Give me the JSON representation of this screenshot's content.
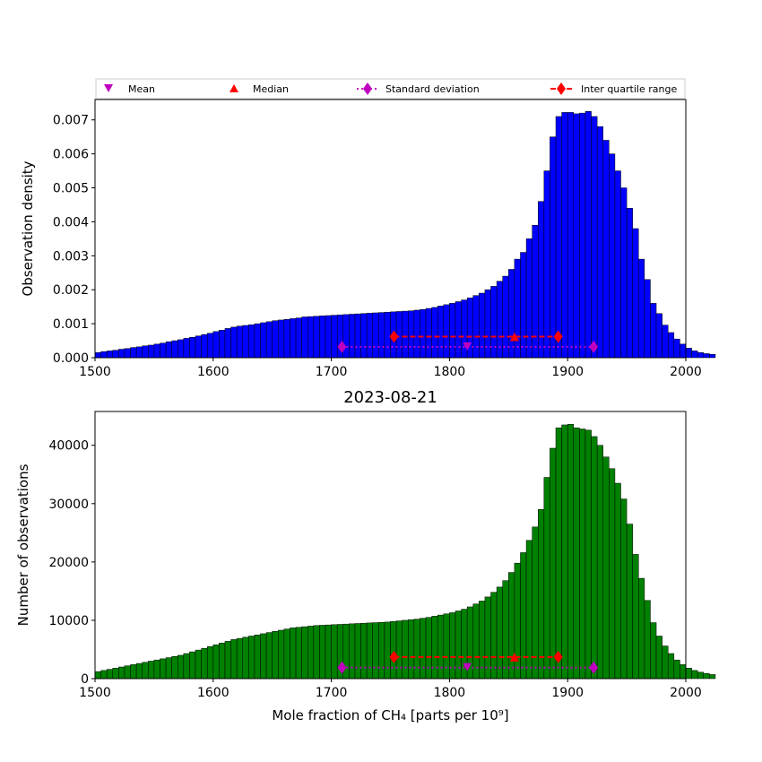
{
  "legend": {
    "placement": "top, spanning width",
    "entries": [
      {
        "label": "Mean",
        "marker": "triangle-down",
        "color": "#bf00bf",
        "line": "none"
      },
      {
        "label": "Median",
        "marker": "triangle-up",
        "color": "#ff0000",
        "line": "none"
      },
      {
        "label": "Standard deviation",
        "marker": "diamond",
        "color": "#bf00bf",
        "line": "dotted"
      },
      {
        "label": "Inter quartile range",
        "marker": "diamond",
        "color": "#ff0000",
        "line": "dashed"
      }
    ]
  },
  "chart_data": [
    {
      "type": "bar",
      "bar_color": "#0000ff",
      "title": "",
      "xlabel": "",
      "ylabel": "Observation density",
      "xlim": [
        1500,
        2000
      ],
      "ylim": [
        0,
        0.0076
      ],
      "xticks": [
        "1500",
        "1600",
        "1700",
        "1800",
        "1900",
        "2000"
      ],
      "yticks": [
        "0.000",
        "0.001",
        "0.002",
        "0.003",
        "0.004",
        "0.005",
        "0.006",
        "0.007"
      ],
      "bin_start": 1500,
      "bin_width": 5,
      "values": [
        0.00015,
        0.00018,
        0.0002,
        0.00022,
        0.00025,
        0.00027,
        0.0003,
        0.00032,
        0.00035,
        0.00037,
        0.0004,
        0.00043,
        0.00047,
        0.0005,
        0.00053,
        0.00057,
        0.0006,
        0.00064,
        0.00068,
        0.00072,
        0.00077,
        0.00081,
        0.00086,
        0.0009,
        0.00093,
        0.00095,
        0.00097,
        0.001,
        0.00103,
        0.00106,
        0.00109,
        0.00111,
        0.00113,
        0.00115,
        0.00117,
        0.0012,
        0.00121,
        0.00122,
        0.00123,
        0.00124,
        0.00125,
        0.00126,
        0.00127,
        0.00128,
        0.00129,
        0.0013,
        0.00131,
        0.00132,
        0.00133,
        0.00134,
        0.00135,
        0.00136,
        0.00137,
        0.00138,
        0.0014,
        0.00142,
        0.00145,
        0.00148,
        0.00152,
        0.00156,
        0.0016,
        0.00165,
        0.0017,
        0.00176,
        0.00183,
        0.0019,
        0.002,
        0.0021,
        0.00225,
        0.0024,
        0.0026,
        0.0029,
        0.0031,
        0.0035,
        0.0039,
        0.0046,
        0.0055,
        0.0065,
        0.0071,
        0.00722,
        0.00722,
        0.00718,
        0.0072,
        0.00725,
        0.0071,
        0.0068,
        0.0064,
        0.006,
        0.0055,
        0.005,
        0.0044,
        0.0038,
        0.0029,
        0.0023,
        0.0016,
        0.0013,
        0.00096,
        0.00074,
        0.00055,
        0.0004,
        0.00028,
        0.0002,
        0.00015,
        0.00012,
        0.0001
      ],
      "statistics": {
        "mean": 1815,
        "median": 1855,
        "standard_deviation_range": [
          1709,
          1922
        ],
        "inter_quartile_range": [
          1753,
          1892
        ],
        "mean_y": 0.00032,
        "median_y": 0.00062,
        "standard_deviation_y": 0.00032,
        "inter_quartile_range_y": 0.00062
      }
    },
    {
      "type": "bar",
      "bar_color": "#008000",
      "title": "2023-08-21",
      "xlabel": "Mole fraction of CH₄ [parts per 10⁹]",
      "ylabel": "Number of observations",
      "xlim": [
        1500,
        2000
      ],
      "ylim": [
        0,
        45800
      ],
      "xticks": [
        "1500",
        "1600",
        "1700",
        "1800",
        "1900",
        "2000"
      ],
      "yticks": [
        "0",
        "10000",
        "20000",
        "30000",
        "40000"
      ],
      "bin_start": 1500,
      "bin_width": 5,
      "values": [
        1200,
        1400,
        1600,
        1800,
        2000,
        2200,
        2400,
        2600,
        2800,
        3000,
        3200,
        3400,
        3600,
        3800,
        4000,
        4300,
        4600,
        4900,
        5200,
        5500,
        5800,
        6100,
        6400,
        6700,
        6900,
        7100,
        7300,
        7500,
        7700,
        7900,
        8100,
        8300,
        8500,
        8700,
        8800,
        8900,
        9000,
        9100,
        9150,
        9200,
        9250,
        9300,
        9350,
        9400,
        9450,
        9500,
        9550,
        9600,
        9650,
        9700,
        9800,
        9900,
        10000,
        10100,
        10200,
        10350,
        10500,
        10700,
        10900,
        11100,
        11300,
        11600,
        11900,
        12300,
        12800,
        13300,
        14000,
        14800,
        15700,
        16800,
        18200,
        19800,
        21600,
        23700,
        26000,
        29000,
        34500,
        39500,
        43000,
        43500,
        43600,
        43000,
        42800,
        42600,
        41500,
        40000,
        38000,
        36000,
        33500,
        30800,
        26500,
        21300,
        17200,
        13400,
        9600,
        7300,
        5600,
        4300,
        3200,
        2400,
        1800,
        1400,
        1100,
        900,
        700
      ],
      "statistics": {
        "mean": 1815,
        "median": 1855,
        "standard_deviation_range": [
          1709,
          1922
        ],
        "inter_quartile_range": [
          1753,
          1892
        ],
        "mean_y": 1900,
        "median_y": 3700,
        "standard_deviation_y": 1900,
        "inter_quartile_range_y": 3700
      }
    }
  ]
}
